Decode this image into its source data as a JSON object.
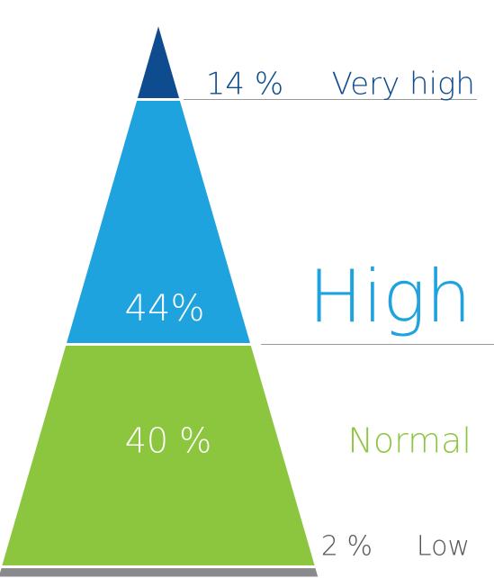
{
  "chart_data": {
    "type": "pyramid",
    "categories": [
      "Very high",
      "High",
      "Normal",
      "Low"
    ],
    "values": [
      14,
      44,
      40,
      2
    ],
    "value_labels": [
      "14 %",
      "44%",
      "40 %",
      "2 %"
    ],
    "colors": [
      "#0f4c8f",
      "#1fa3de",
      "#8cc63f",
      "#8a8a8d"
    ]
  }
}
